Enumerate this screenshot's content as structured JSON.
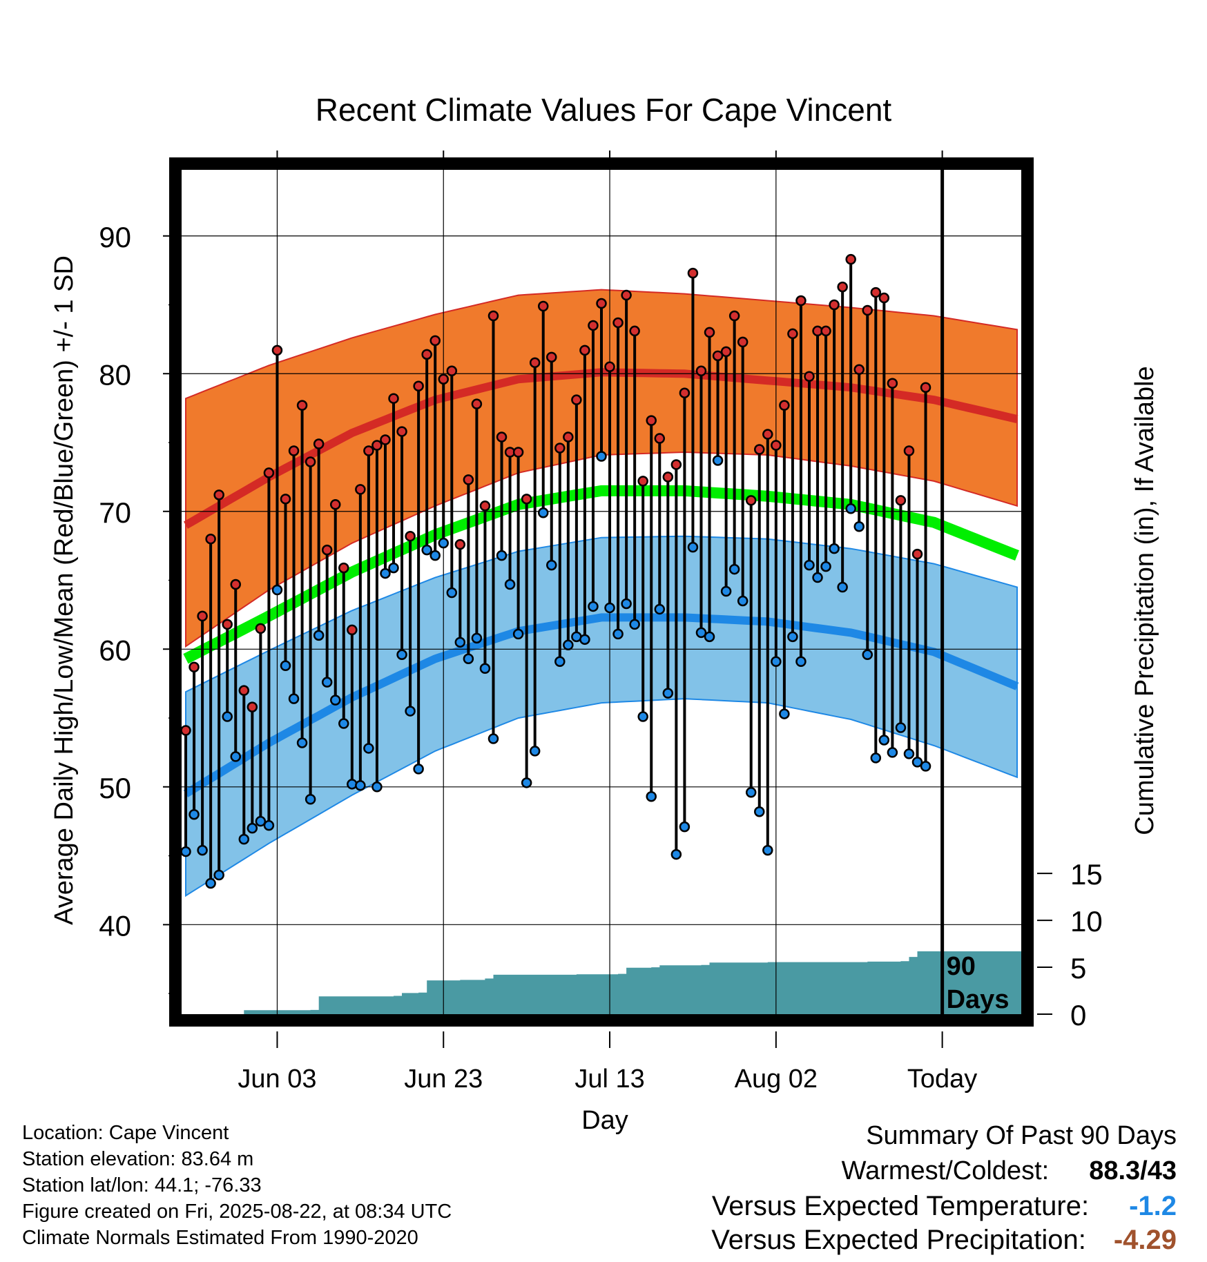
{
  "chart_data": {
    "type": "line",
    "title": "Recent Climate Values For Cape Vincent",
    "xlabel": "Day",
    "ylabel": "Average Daily High/Low/Mean (Red/Blue/Green) +/- 1 SD",
    "y2label": "Cumulative Precipitation (in), If Available",
    "x_ticks": [
      "Jun 03",
      "Jun 23",
      "Jul 13",
      "Aug 02",
      "Today"
    ],
    "x_tick_day": [
      11,
      31,
      51,
      71,
      91
    ],
    "xlim": [
      -0.5,
      100.5
    ],
    "ylim": [
      33.5,
      94.8
    ],
    "y_ticks": [
      40,
      50,
      60,
      70,
      80,
      90
    ],
    "y2lim": [
      0,
      90
    ],
    "y2_ticks": [
      0,
      5,
      10,
      15
    ],
    "today_day": 91,
    "today_annotation": "90 Days",
    "grid": true,
    "colors": {
      "high_band": "#f07a2c",
      "high_mean": "#d42a25",
      "low_band": "#82c2e8",
      "low_mean": "#1e88e5",
      "mean": "#00ee00",
      "precip": "#4a9aa3",
      "obs_high": "#d32f2f",
      "obs_low": "#1e88e5"
    },
    "normals": {
      "days": [
        0,
        10,
        20,
        30,
        40,
        50,
        60,
        70,
        80,
        90,
        100
      ],
      "high_plus_sd": [
        78.2,
        80.6,
        82.6,
        84.3,
        85.7,
        86.1,
        85.8,
        85.3,
        84.8,
        84.2,
        83.2
      ],
      "high_mean": [
        69.0,
        72.5,
        75.7,
        78.1,
        79.6,
        80.1,
        80.0,
        79.5,
        79.0,
        78.1,
        76.7
      ],
      "high_minus_sd": [
        60.2,
        64.3,
        67.7,
        70.4,
        72.8,
        74.1,
        74.3,
        74.1,
        73.3,
        72.2,
        70.4
      ],
      "mean": [
        59.3,
        62.4,
        65.6,
        68.3,
        70.5,
        71.5,
        71.5,
        71.1,
        70.5,
        69.2,
        66.8
      ],
      "low_plus_sd": [
        56.9,
        59.9,
        62.8,
        65.2,
        67.1,
        68.1,
        68.2,
        68.0,
        67.3,
        66.2,
        64.5
      ],
      "low_mean": [
        49.5,
        53.2,
        56.5,
        59.3,
        61.3,
        62.3,
        62.3,
        62.0,
        61.2,
        59.8,
        57.3
      ],
      "low_minus_sd": [
        42.1,
        45.9,
        49.4,
        52.6,
        55.0,
        56.1,
        56.4,
        56.1,
        54.9,
        53.0,
        50.7
      ]
    },
    "highs": [
      54.1,
      58.7,
      62.4,
      68.0,
      71.2,
      61.8,
      64.7,
      57.0,
      55.8,
      61.5,
      72.8,
      81.7,
      70.9,
      74.4,
      77.7,
      73.6,
      74.9,
      67.2,
      70.5,
      65.9,
      61.4,
      71.6,
      74.4,
      74.8,
      75.2,
      78.2,
      75.8,
      68.2,
      79.1,
      81.4,
      82.4,
      79.6,
      80.2,
      67.6,
      72.3,
      77.8,
      70.4,
      84.2,
      75.4,
      74.3,
      74.3,
      70.9,
      80.8,
      84.9,
      81.2,
      74.6,
      75.4,
      78.1,
      81.7,
      83.5,
      85.1,
      80.5,
      83.7,
      85.7,
      83.1,
      72.2,
      76.6,
      75.3,
      72.5,
      73.4,
      78.6,
      87.3,
      80.2,
      83.0,
      81.3,
      81.6,
      84.2,
      82.3,
      70.8,
      74.5,
      75.6,
      74.8,
      77.7,
      82.9,
      85.3,
      79.8,
      83.1,
      83.1,
      85.0,
      86.3,
      88.3,
      80.3,
      84.6,
      85.9,
      85.5,
      79.3,
      70.8,
      74.4,
      66.9,
      79.0
    ],
    "lows": [
      45.3,
      48.0,
      45.4,
      43.0,
      43.6,
      55.1,
      52.2,
      46.2,
      47.0,
      47.5,
      47.2,
      64.3,
      58.8,
      56.4,
      53.2,
      49.1,
      61.0,
      57.6,
      56.3,
      54.6,
      50.2,
      50.1,
      52.8,
      50.0,
      65.5,
      65.9,
      59.6,
      55.5,
      51.3,
      67.2,
      66.8,
      67.7,
      64.1,
      60.5,
      59.3,
      60.8,
      58.6,
      53.5,
      66.8,
      64.7,
      61.1,
      50.3,
      52.6,
      69.9,
      66.1,
      59.1,
      60.3,
      60.9,
      60.7,
      63.1,
      74.0,
      63.0,
      61.1,
      63.3,
      61.8,
      55.1,
      49.3,
      62.9,
      56.8,
      45.1,
      47.1,
      67.4,
      61.2,
      60.9,
      73.7,
      64.2,
      65.8,
      63.5,
      49.6,
      48.2,
      45.4,
      59.1,
      55.3,
      60.9,
      59.1,
      66.1,
      65.2,
      66.0,
      67.3,
      64.5,
      70.2,
      68.9,
      59.6,
      52.1,
      53.4,
      52.5,
      54.3,
      52.4,
      51.8,
      51.5
    ],
    "precip_cumulative": [
      [
        0,
        0
      ],
      [
        6,
        0
      ],
      [
        7,
        0.42
      ],
      [
        15,
        0.45
      ],
      [
        16,
        1.9
      ],
      [
        25,
        1.95
      ],
      [
        26,
        2.25
      ],
      [
        28,
        2.3
      ],
      [
        29,
        3.6
      ],
      [
        33,
        3.65
      ],
      [
        36,
        3.8
      ],
      [
        37,
        4.2
      ],
      [
        47,
        4.25
      ],
      [
        52,
        4.3
      ],
      [
        53,
        4.95
      ],
      [
        56,
        5.0
      ],
      [
        57,
        5.2
      ],
      [
        62,
        5.25
      ],
      [
        63,
        5.5
      ],
      [
        70,
        5.55
      ],
      [
        82,
        5.6
      ],
      [
        86,
        5.65
      ],
      [
        87,
        6.1
      ],
      [
        88,
        6.7
      ],
      [
        100.5,
        6.7
      ]
    ]
  },
  "info": {
    "location": "Location: Cape Vincent",
    "elevation": "Station elevation: 83.64 m",
    "latlon": "Station lat/lon: 44.1; -76.33",
    "created": "Figure created on Fri, 2025-08-22, at 08:34 UTC",
    "normals": "Climate Normals Estimated From 1990-2020"
  },
  "summary": {
    "title": "Summary Of Past 90 Days",
    "warm_cold_label": "Warmest/Coldest:",
    "warm_cold_value": "88.3/43",
    "temp_label": "Versus Expected Temperature:",
    "temp_value": "-1.2",
    "precip_label": "Versus Expected Precipitation:",
    "precip_value": "-4.29",
    "temp_color": "#1e88e5",
    "precip_color": "#a0522d"
  }
}
